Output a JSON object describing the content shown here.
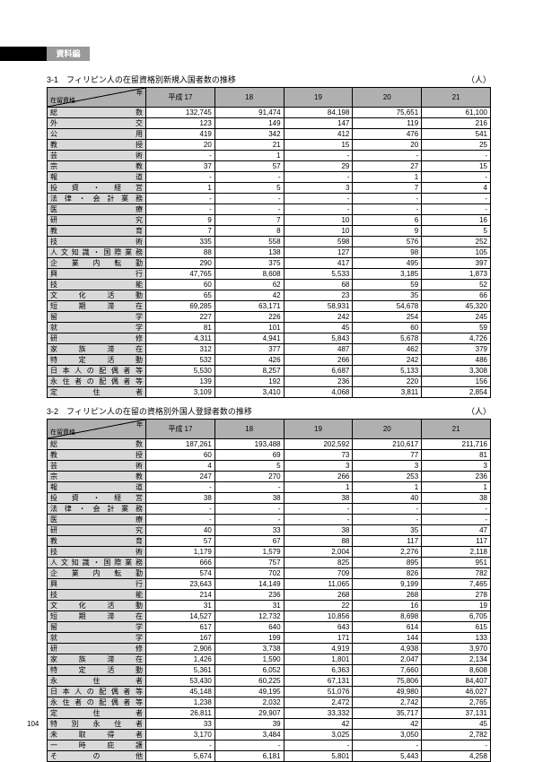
{
  "tab_label": "資料編",
  "page_number": "104",
  "unit_label": "（人）",
  "years": [
    "平成 17",
    "18",
    "19",
    "20",
    "21"
  ],
  "corner": {
    "year": "年",
    "residence": "在留資格"
  },
  "table1": {
    "title": "3-1　フィリピン人の在留資格別新規入国者数の推移",
    "rows": [
      [
        "総数",
        "132,745",
        "91,474",
        "84,198",
        "75,651",
        "61,100"
      ],
      [
        "外交",
        "123",
        "149",
        "147",
        "119",
        "216"
      ],
      [
        "公用",
        "419",
        "342",
        "412",
        "476",
        "541"
      ],
      [
        "教授",
        "20",
        "21",
        "15",
        "20",
        "25"
      ],
      [
        "芸術",
        "-",
        "1",
        "-",
        "-",
        "-"
      ],
      [
        "宗教",
        "37",
        "57",
        "29",
        "27",
        "15"
      ],
      [
        "報道",
        "-",
        "-",
        "-",
        "1",
        "-"
      ],
      [
        "投資・経営",
        "1",
        "5",
        "3",
        "7",
        "4"
      ],
      [
        "法律・会計業務",
        "-",
        "-",
        "-",
        "-",
        "-"
      ],
      [
        "医療",
        "-",
        "-",
        "-",
        "-",
        "-"
      ],
      [
        "研究",
        "9",
        "7",
        "10",
        "6",
        "16"
      ],
      [
        "教育",
        "7",
        "8",
        "10",
        "9",
        "5"
      ],
      [
        "技術",
        "335",
        "558",
        "598",
        "576",
        "252"
      ],
      [
        "人文知識・国際業務",
        "88",
        "138",
        "127",
        "98",
        "105"
      ],
      [
        "企業内転勤",
        "290",
        "375",
        "417",
        "495",
        "397"
      ],
      [
        "興行",
        "47,765",
        "8,608",
        "5,533",
        "3,185",
        "1,873"
      ],
      [
        "技能",
        "60",
        "62",
        "68",
        "59",
        "52"
      ],
      [
        "文化活動",
        "65",
        "42",
        "23",
        "35",
        "66"
      ],
      [
        "短期滞在",
        "69,285",
        "63,171",
        "58,931",
        "54,678",
        "45,320"
      ],
      [
        "留学",
        "227",
        "226",
        "242",
        "254",
        "245"
      ],
      [
        "就学",
        "81",
        "101",
        "45",
        "60",
        "59"
      ],
      [
        "研修",
        "4,311",
        "4,941",
        "5,843",
        "5,678",
        "4,726"
      ],
      [
        "家族滞在",
        "312",
        "377",
        "487",
        "462",
        "379"
      ],
      [
        "特定活動",
        "532",
        "426",
        "266",
        "242",
        "486"
      ],
      [
        "日本人の配偶者等",
        "5,530",
        "8,257",
        "6,687",
        "5,133",
        "3,308"
      ],
      [
        "永住者の配偶者等",
        "139",
        "192",
        "236",
        "220",
        "156"
      ],
      [
        "定住者",
        "3,109",
        "3,410",
        "4,068",
        "3,811",
        "2,854"
      ]
    ]
  },
  "table2": {
    "title": "3-2　フィリピン人の在留の資格別外国人登録者数の推移",
    "rows": [
      [
        "総数",
        "187,261",
        "193,488",
        "202,592",
        "210,617",
        "211,716"
      ],
      [
        "教授",
        "60",
        "69",
        "73",
        "77",
        "81"
      ],
      [
        "芸術",
        "4",
        "5",
        "3",
        "3",
        "3"
      ],
      [
        "宗教",
        "247",
        "270",
        "266",
        "253",
        "236"
      ],
      [
        "報道",
        "-",
        "-",
        "1",
        "1",
        "1"
      ],
      [
        "投資・経営",
        "38",
        "38",
        "38",
        "40",
        "38"
      ],
      [
        "法律・会計業務",
        "-",
        "-",
        "-",
        "-",
        "-"
      ],
      [
        "医療",
        "-",
        "-",
        "-",
        "-",
        "-"
      ],
      [
        "研究",
        "40",
        "33",
        "38",
        "35",
        "47"
      ],
      [
        "教育",
        "57",
        "67",
        "88",
        "117",
        "117"
      ],
      [
        "技術",
        "1,179",
        "1,579",
        "2,004",
        "2,276",
        "2,118"
      ],
      [
        "人文知識・国際業務",
        "666",
        "757",
        "825",
        "895",
        "951"
      ],
      [
        "企業内転勤",
        "574",
        "702",
        "709",
        "826",
        "782"
      ],
      [
        "興行",
        "23,643",
        "14,149",
        "11,065",
        "9,199",
        "7,465"
      ],
      [
        "技能",
        "214",
        "236",
        "268",
        "268",
        "278"
      ],
      [
        "文化活動",
        "31",
        "31",
        "22",
        "16",
        "19"
      ],
      [
        "短期滞在",
        "14,527",
        "12,732",
        "10,856",
        "8,698",
        "6,705"
      ],
      [
        "留学",
        "617",
        "640",
        "643",
        "614",
        "615"
      ],
      [
        "就学",
        "167",
        "199",
        "171",
        "144",
        "133"
      ],
      [
        "研修",
        "2,906",
        "3,738",
        "4,919",
        "4,938",
        "3,970"
      ],
      [
        "家族滞在",
        "1,426",
        "1,590",
        "1,801",
        "2,047",
        "2,134"
      ],
      [
        "特定活動",
        "5,361",
        "6,052",
        "6,363",
        "7,660",
        "8,608"
      ],
      [
        "永住者",
        "53,430",
        "60,225",
        "67,131",
        "75,806",
        "84,407"
      ],
      [
        "日本人の配偶者等",
        "45,148",
        "49,195",
        "51,076",
        "49,980",
        "46,027"
      ],
      [
        "永住者の配偶者等",
        "1,238",
        "2,032",
        "2,472",
        "2,742",
        "2,765"
      ],
      [
        "定住者",
        "26,811",
        "29,907",
        "33,332",
        "35,717",
        "37,131"
      ],
      [
        "特別永住者",
        "33",
        "39",
        "42",
        "42",
        "45"
      ],
      [
        "未取得者",
        "3,170",
        "3,484",
        "3,025",
        "3,050",
        "2,782"
      ],
      [
        "一時庇護",
        "-",
        "-",
        "-",
        "-",
        "-"
      ],
      [
        "その他",
        "5,674",
        "6,181",
        "5,801",
        "5,443",
        "4,258"
      ]
    ]
  }
}
